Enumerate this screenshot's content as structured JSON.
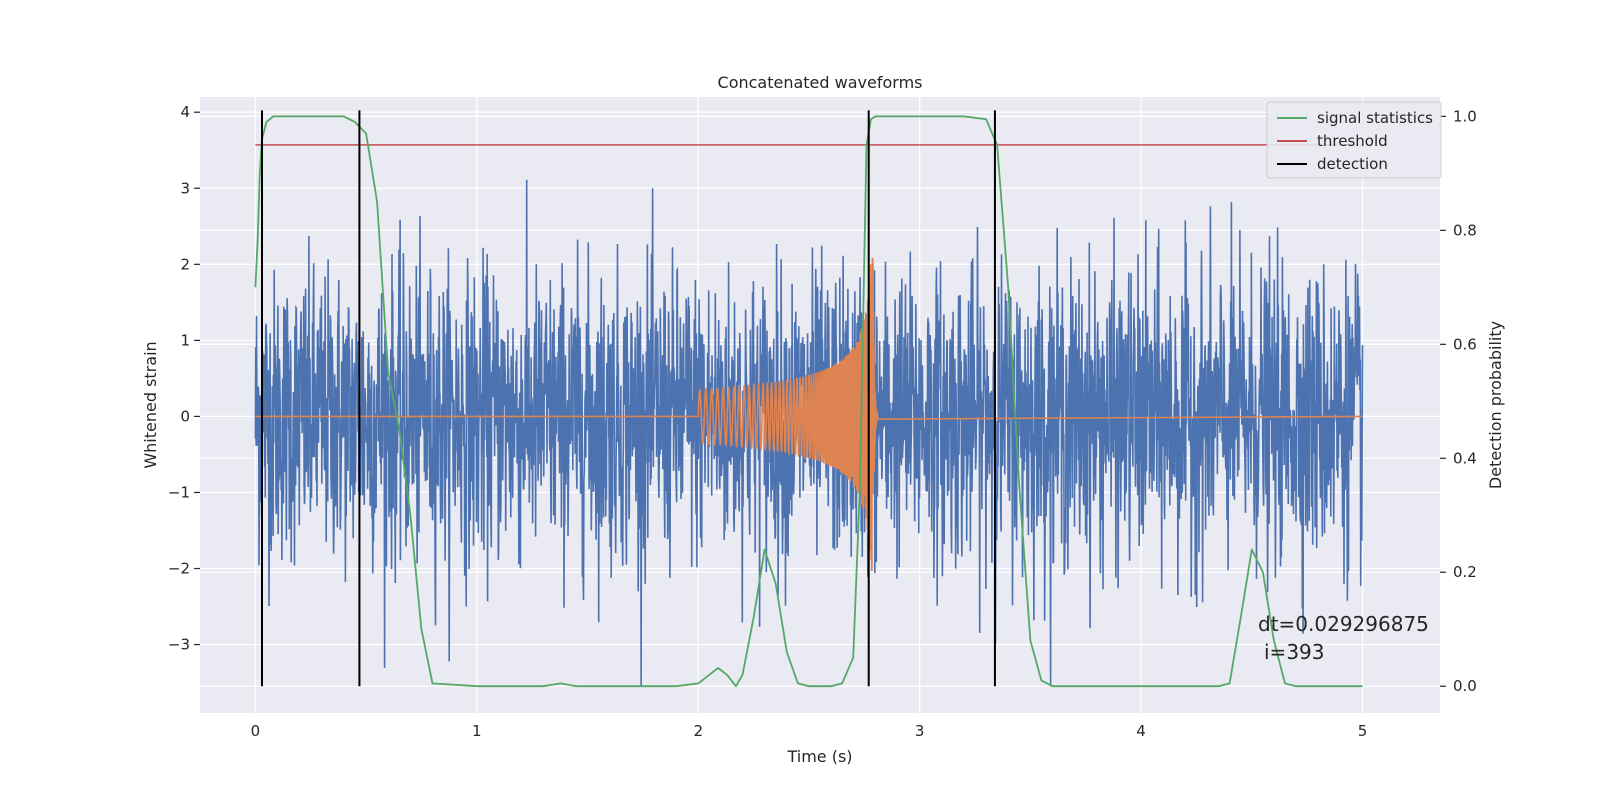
{
  "chart_data": {
    "type": "line",
    "title": "Concatenated waveforms",
    "xlabel": "Time (s)",
    "ylabel": "Whitened strain",
    "y2label": "Detection probability",
    "xlim": [
      -0.25,
      5.35
    ],
    "ylim": [
      -3.9,
      4.2
    ],
    "y2lim": [
      -0.047,
      1.034
    ],
    "xticks": [
      0,
      1,
      2,
      3,
      4,
      5
    ],
    "xtick_labels": [
      "0",
      "1",
      "2",
      "3",
      "4",
      "5"
    ],
    "yticks": [
      -3,
      -2,
      -1,
      0,
      1,
      2,
      3,
      4
    ],
    "ytick_labels": [
      "−3",
      "−2",
      "−1",
      "0",
      "1",
      "2",
      "3",
      "4"
    ],
    "y2ticks": [
      0.0,
      0.2,
      0.4,
      0.6,
      0.8,
      1.0
    ],
    "y2tick_labels": [
      "0.0",
      "0.2",
      "0.4",
      "0.6",
      "0.8",
      "1.0"
    ],
    "grid": true,
    "legend_position": "top-right",
    "legend": [
      {
        "label": "signal statistics",
        "color": "#55a868",
        "kind": "line"
      },
      {
        "label": "threshold",
        "color": "#c44e52",
        "kind": "line"
      },
      {
        "label": "detection",
        "color": "#000000",
        "kind": "line"
      }
    ],
    "annotations": [
      "dt=0.029296875",
      "i=393"
    ],
    "strain": {
      "color": "#4c72b0",
      "x_range": [
        0,
        5
      ],
      "typical_amplitude": 1.0,
      "max": 3.2,
      "min": -3.55
    },
    "injected_signal": {
      "color": "#dd8452",
      "x_range": [
        2.0,
        2.81
      ],
      "start_amplitude": 0.35,
      "peak_amplitude": 2.1,
      "peak_time": 2.79
    },
    "signal_statistics": {
      "color": "#55a868",
      "axis": "right",
      "x": [
        0.0,
        0.01,
        0.02,
        0.03,
        0.05,
        0.08,
        0.12,
        0.2,
        0.3,
        0.4,
        0.45,
        0.5,
        0.55,
        0.6,
        0.65,
        0.7,
        0.75,
        0.8,
        1.0,
        1.3,
        1.38,
        1.45,
        1.6,
        1.9,
        2.0,
        2.05,
        2.09,
        2.13,
        2.17,
        2.2,
        2.25,
        2.3,
        2.35,
        2.4,
        2.45,
        2.5,
        2.55,
        2.6,
        2.65,
        2.7,
        2.73,
        2.76,
        2.78,
        2.8,
        2.85,
        3.0,
        3.2,
        3.3,
        3.35,
        3.4,
        3.45,
        3.5,
        3.55,
        3.6,
        3.8,
        4.0,
        4.2,
        4.35,
        4.4,
        4.45,
        4.5,
        4.55,
        4.6,
        4.65,
        4.7,
        4.8,
        5.0
      ],
      "y": [
        0.7,
        0.78,
        0.9,
        0.96,
        0.99,
        1.0,
        1.0,
        1.0,
        1.0,
        1.0,
        0.99,
        0.97,
        0.85,
        0.55,
        0.45,
        0.3,
        0.1,
        0.005,
        0.0,
        0.0,
        0.005,
        0.0,
        0.0,
        0.0,
        0.005,
        0.02,
        0.032,
        0.02,
        0.0,
        0.02,
        0.12,
        0.24,
        0.18,
        0.06,
        0.005,
        0.0,
        0.0,
        0.0,
        0.005,
        0.05,
        0.35,
        0.95,
        0.995,
        1.0,
        1.0,
        1.0,
        1.0,
        0.995,
        0.95,
        0.7,
        0.35,
        0.08,
        0.01,
        0.0,
        0.0,
        0.0,
        0.0,
        0.0,
        0.005,
        0.12,
        0.24,
        0.2,
        0.08,
        0.005,
        0.0,
        0.0,
        0.0
      ]
    },
    "threshold": {
      "color": "#c44e52",
      "axis": "right",
      "value": 0.95,
      "x_range": [
        0,
        5
      ]
    },
    "detections": {
      "color": "#000000",
      "x": [
        0.03,
        0.47,
        2.77,
        3.34
      ]
    }
  }
}
